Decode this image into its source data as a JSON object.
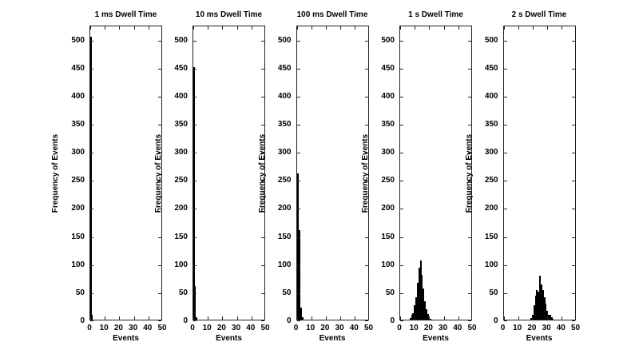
{
  "figure": {
    "background_color": "#ffffff",
    "axis_color": "#222222",
    "text_color": "#000000",
    "bar_fill_color": "#1f8a8a",
    "bar_edge_color": "#000000"
  },
  "chart_data": [
    {
      "type": "bar",
      "title": "1 ms Dwell Time",
      "xlabel": "Events",
      "ylabel": "Frequency of Events",
      "xlim": [
        0,
        50
      ],
      "ylim": [
        0,
        525
      ],
      "grid": false,
      "legend": null,
      "x_ticks": [
        0,
        10,
        20,
        30,
        40,
        50
      ],
      "y_ticks": [
        0,
        50,
        100,
        150,
        200,
        250,
        300,
        350,
        400,
        450,
        500
      ],
      "bin_centers": [
        0,
        1
      ],
      "counts": [
        503,
        8
      ]
    },
    {
      "type": "bar",
      "title": "10 ms Dwell Time",
      "xlabel": "Events",
      "ylabel": "Frequency of Events",
      "xlim": [
        0,
        50
      ],
      "ylim": [
        0,
        525
      ],
      "grid": false,
      "legend": null,
      "x_ticks": [
        0,
        10,
        20,
        30,
        40,
        50
      ],
      "y_ticks": [
        0,
        50,
        100,
        150,
        200,
        250,
        300,
        350,
        400,
        450,
        500
      ],
      "bin_centers": [
        0,
        1,
        2
      ],
      "counts": [
        450,
        60,
        5
      ]
    },
    {
      "type": "bar",
      "title": "100 ms Dwell Time",
      "xlabel": "Events",
      "ylabel": "Frequency of Events",
      "xlim": [
        0,
        50
      ],
      "ylim": [
        0,
        525
      ],
      "grid": false,
      "legend": null,
      "x_ticks": [
        0,
        10,
        20,
        30,
        40,
        50
      ],
      "y_ticks": [
        0,
        50,
        100,
        150,
        200,
        250,
        300,
        350,
        400,
        450,
        500
      ],
      "bin_centers": [
        0,
        1,
        2,
        3,
        4
      ],
      "counts": [
        65,
        260,
        160,
        22,
        5
      ]
    },
    {
      "type": "bar",
      "title": "1 s Dwell Time",
      "xlabel": "Events",
      "ylabel": "Frequency of Events",
      "xlim": [
        0,
        50
      ],
      "ylim": [
        0,
        525
      ],
      "grid": false,
      "legend": null,
      "x_ticks": [
        0,
        10,
        20,
        30,
        40,
        50
      ],
      "y_ticks": [
        0,
        50,
        100,
        150,
        200,
        250,
        300,
        350,
        400,
        450,
        500
      ],
      "bin_centers": [
        7,
        8,
        9,
        10,
        11,
        12,
        13,
        14,
        15,
        16,
        17,
        18,
        19,
        20,
        21
      ],
      "counts": [
        3,
        8,
        12,
        25,
        40,
        65,
        92,
        105,
        80,
        55,
        33,
        18,
        10,
        5,
        2
      ]
    },
    {
      "type": "bar",
      "title": "2 s Dwell Time",
      "xlabel": "Events",
      "ylabel": "Frequency of Events",
      "xlim": [
        0,
        50
      ],
      "ylim": [
        0,
        525
      ],
      "grid": false,
      "legend": null,
      "x_ticks": [
        0,
        10,
        20,
        30,
        40,
        50
      ],
      "y_ticks": [
        0,
        50,
        100,
        150,
        200,
        250,
        300,
        350,
        400,
        450,
        500
      ],
      "bin_centers": [
        19,
        20,
        21,
        22,
        23,
        24,
        25,
        26,
        27,
        28,
        29,
        30,
        31,
        32,
        33,
        34
      ],
      "counts": [
        3,
        8,
        25,
        42,
        52,
        50,
        78,
        62,
        52,
        40,
        28,
        15,
        8,
        8,
        4,
        2
      ]
    }
  ]
}
